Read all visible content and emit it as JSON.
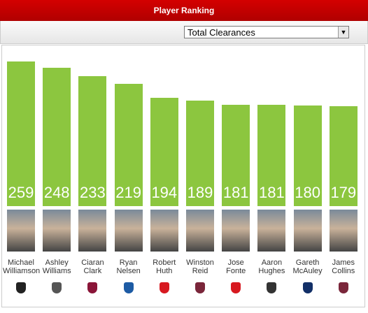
{
  "header": {
    "title": "Player Ranking"
  },
  "dropdown": {
    "selected": "Total Clearances"
  },
  "chart_data": {
    "type": "bar",
    "color": "#8cc63f",
    "categories": [
      "Michael Williamson",
      "Ashley Williams",
      "Ciaran Clark",
      "Ryan Nelsen",
      "Robert Huth",
      "Winston Reid",
      "Jose Fonte",
      "Aaron Hughes",
      "Gareth McAuley",
      "James Collins"
    ],
    "values": [
      259,
      248,
      233,
      219,
      194,
      189,
      181,
      181,
      180,
      179
    ]
  }
}
